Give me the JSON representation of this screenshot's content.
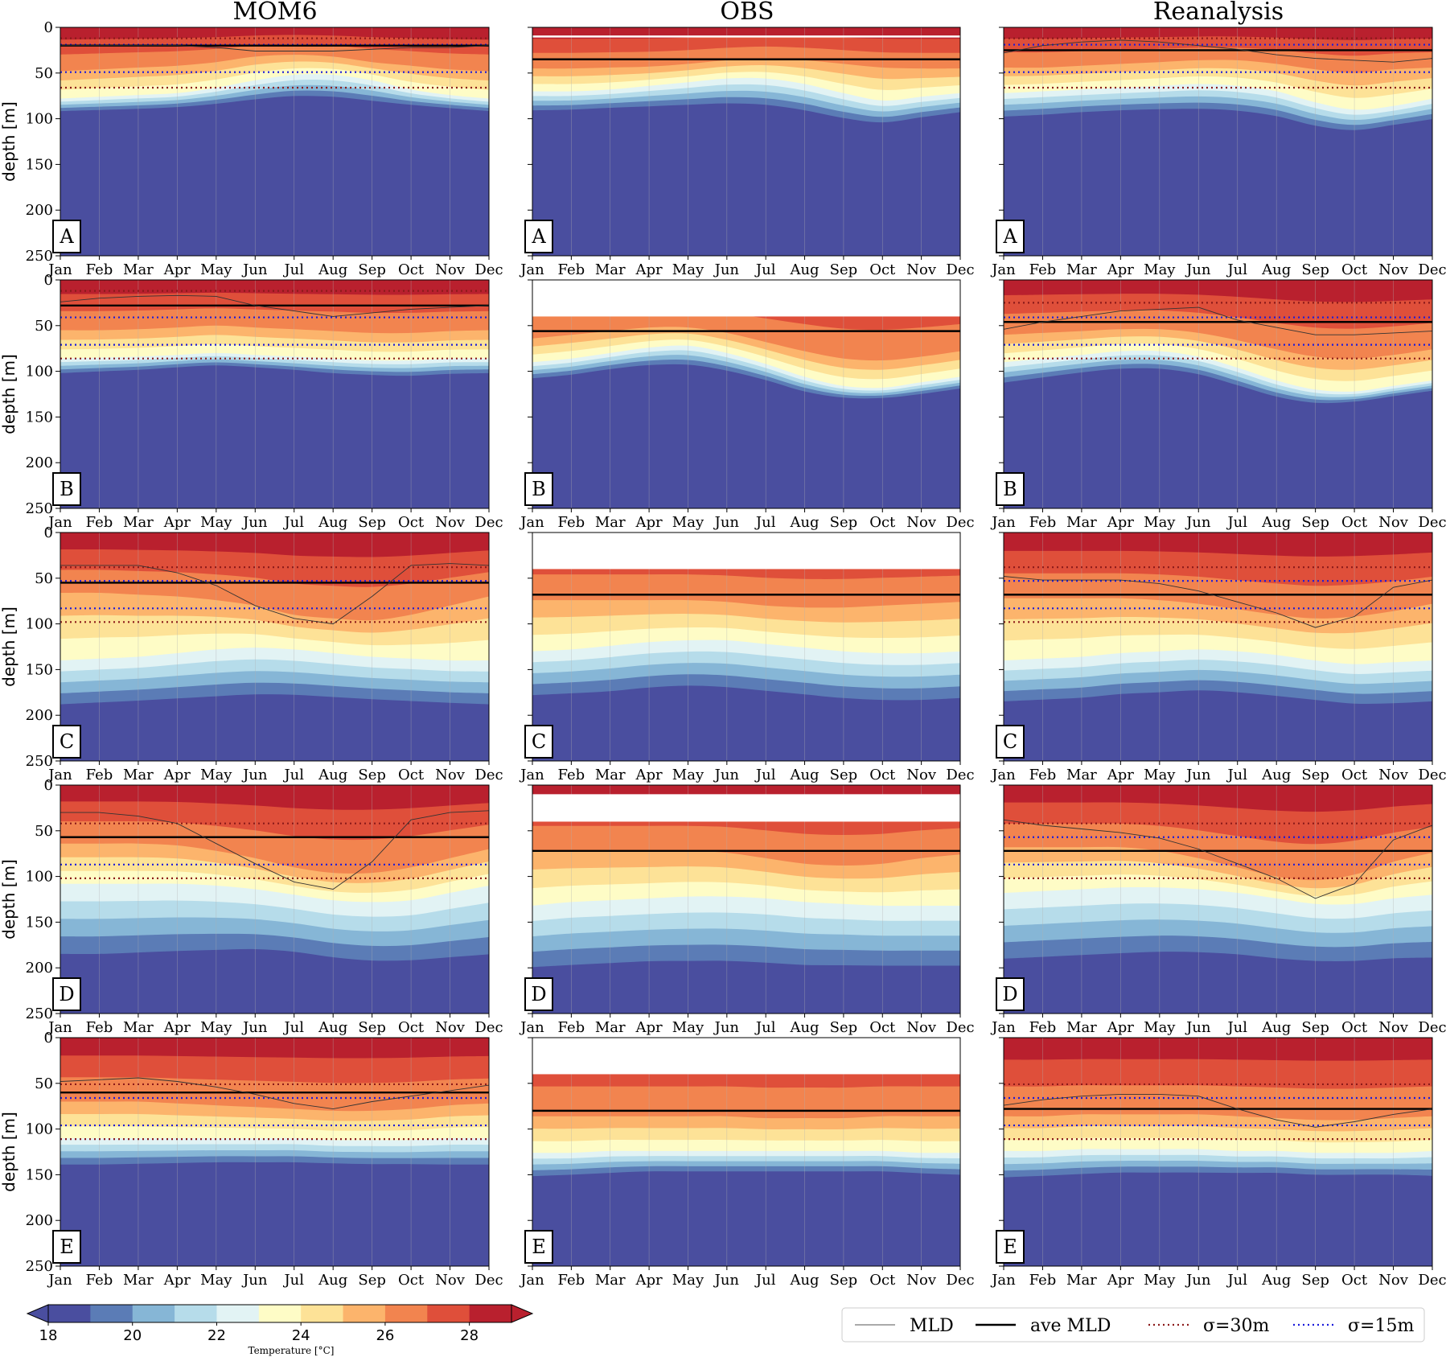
{
  "chart_data": {
    "type": "heatmap",
    "description_of_variable": "Temperature [°C]",
    "columns": [
      "MOM6",
      "OBS",
      "Reanalysis"
    ],
    "rows": [
      "A",
      "B",
      "C",
      "D",
      "E"
    ],
    "months": [
      "Jan",
      "Feb",
      "Mar",
      "Apr",
      "May",
      "Jun",
      "Jul",
      "Aug",
      "Sep",
      "Oct",
      "Nov",
      "Dec"
    ],
    "ylabel": "depth [m]",
    "yticks": [
      0,
      50,
      100,
      150,
      200,
      250
    ],
    "ylim": [
      250,
      0
    ],
    "colorbar": {
      "levels": [
        18,
        19,
        20,
        21,
        22,
        23,
        24,
        25,
        26,
        27,
        28,
        29
      ],
      "ticks": [
        18,
        20,
        22,
        24,
        26,
        28
      ],
      "label": "Temperature [°C]",
      "colors": [
        "#4a4e9f",
        "#5b7cb6",
        "#86b6d6",
        "#b6dcea",
        "#e2f3f4",
        "#fefcc6",
        "#fde297",
        "#fcb46c",
        "#f2844f",
        "#df4f3a",
        "#b9202e"
      ]
    },
    "legend": {
      "entries": [
        {
          "label": "MLD",
          "style": "thin-line",
          "color": "#555555"
        },
        {
          "label": "ave MLD",
          "style": "thick-line",
          "color": "#000000"
        },
        {
          "label": "σ=30m",
          "style": "dotted",
          "color": "#8b1a1a"
        },
        {
          "label": "σ=15m",
          "style": "dotted",
          "color": "#1a1adb"
        }
      ],
      "placement": "bottom-right"
    },
    "panels": [
      {
        "row": "A",
        "col": "MOM6",
        "isotherm26": [
          48,
          46,
          44,
          42,
          38,
          32,
          30,
          32,
          38,
          42,
          46,
          48
        ],
        "isotherm23": [
          78,
          76,
          74,
          72,
          66,
          58,
          52,
          52,
          58,
          68,
          74,
          78
        ],
        "bottom": [
          95,
          94,
          93,
          91,
          88,
          84,
          81,
          82,
          86,
          89,
          92,
          95
        ],
        "mld": [
          20,
          20,
          20,
          20,
          22,
          26,
          26,
          26,
          24,
          22,
          22,
          20
        ],
        "ave_mld": 20,
        "sigma30": [
          12,
          66
        ],
        "sigma15": [
          19,
          49
        ],
        "obs_gap": null
      },
      {
        "row": "A",
        "col": "OBS",
        "isotherm26": [
          45,
          45,
          44,
          43,
          40,
          36,
          34,
          36,
          40,
          44,
          45,
          45
        ],
        "isotherm23": [
          70,
          70,
          68,
          64,
          60,
          56,
          56,
          62,
          72,
          80,
          76,
          72
        ],
        "bottom": [
          96,
          95,
          93,
          92,
          91,
          90,
          92,
          98,
          106,
          110,
          104,
          98
        ],
        "mld": null,
        "ave_mld": 35,
        "sigma30": null,
        "sigma15": null,
        "obs_gap": null,
        "white_line": 10
      },
      {
        "row": "A",
        "col": "Reanalysis",
        "isotherm26": [
          44,
          44,
          42,
          40,
          38,
          36,
          36,
          40,
          46,
          50,
          46,
          44
        ],
        "isotherm23": [
          72,
          70,
          68,
          66,
          64,
          62,
          64,
          70,
          82,
          90,
          86,
          78
        ],
        "bottom": [
          104,
          102,
          99,
          97,
          96,
          96,
          98,
          104,
          114,
          118,
          112,
          106
        ],
        "mld": [
          28,
          20,
          16,
          14,
          16,
          20,
          24,
          30,
          34,
          36,
          38,
          34
        ],
        "ave_mld": 25,
        "sigma30": [
          12,
          66
        ],
        "sigma15": [
          19,
          49
        ],
        "obs_gap": null
      },
      {
        "row": "B",
        "col": "MOM6",
        "isotherm26": [
          55,
          55,
          54,
          52,
          50,
          52,
          54,
          56,
          58,
          58,
          56,
          55
        ],
        "isotherm23": [
          86,
          85,
          84,
          82,
          80,
          82,
          84,
          86,
          88,
          88,
          86,
          86
        ],
        "bottom": [
          106,
          104,
          102,
          99,
          97,
          99,
          102,
          106,
          108,
          109,
          107,
          106
        ],
        "mld": [
          24,
          20,
          18,
          17,
          18,
          28,
          34,
          40,
          36,
          32,
          30,
          28
        ],
        "ave_mld": 28,
        "sigma30": [
          12,
          86
        ],
        "sigma15": [
          41,
          71
        ],
        "obs_gap": null
      },
      {
        "row": "B",
        "col": "OBS",
        "isotherm26": [
          64,
          60,
          56,
          52,
          52,
          58,
          68,
          78,
          86,
          88,
          84,
          78
        ],
        "isotherm23": [
          90,
          86,
          80,
          74,
          72,
          80,
          92,
          106,
          116,
          118,
          112,
          106
        ],
        "bottom": [
          112,
          108,
          102,
          98,
          98,
          104,
          114,
          126,
          132,
          132,
          128,
          122
        ],
        "mld": null,
        "ave_mld": 56,
        "sigma30": null,
        "sigma15": null,
        "obs_gap": [
          0,
          40
        ]
      },
      {
        "row": "B",
        "col": "Reanalysis",
        "isotherm26": [
          60,
          58,
          56,
          54,
          54,
          58,
          66,
          76,
          84,
          86,
          82,
          76
        ],
        "isotherm23": [
          90,
          86,
          82,
          78,
          78,
          84,
          96,
          110,
          120,
          122,
          116,
          110
        ],
        "bottom": [
          118,
          112,
          106,
          102,
          102,
          108,
          120,
          132,
          138,
          136,
          130,
          124
        ],
        "mld": [
          54,
          46,
          40,
          34,
          32,
          30,
          44,
          52,
          60,
          60,
          58,
          56
        ],
        "ave_mld": 46,
        "sigma30": [
          25,
          86
        ],
        "sigma15": [
          41,
          71
        ],
        "obs_gap": null
      },
      {
        "row": "C",
        "col": "MOM6",
        "isotherm26": [
          66,
          66,
          68,
          70,
          74,
          80,
          90,
          94,
          96,
          90,
          80,
          70
        ],
        "isotherm23": [
          140,
          138,
          136,
          132,
          128,
          126,
          128,
          132,
          136,
          138,
          140,
          140
        ],
        "bottom": [
          200,
          198,
          196,
          194,
          192,
          190,
          190,
          192,
          194,
          196,
          198,
          200
        ],
        "mld": [
          36,
          36,
          36,
          44,
          58,
          80,
          94,
          100,
          70,
          36,
          34,
          36
        ],
        "ave_mld": 55,
        "sigma30": [
          38,
          98
        ],
        "sigma15": [
          53,
          83
        ],
        "obs_gap": null
      },
      {
        "row": "C",
        "col": "OBS",
        "isotherm26": [
          74,
          74,
          74,
          74,
          74,
          76,
          80,
          82,
          82,
          80,
          78,
          76
        ],
        "isotherm23": [
          130,
          128,
          124,
          120,
          118,
          118,
          122,
          126,
          130,
          132,
          132,
          130
        ],
        "bottom": [
          190,
          188,
          186,
          182,
          180,
          182,
          186,
          190,
          194,
          196,
          196,
          194
        ],
        "mld": null,
        "ave_mld": 68,
        "sigma30": null,
        "sigma15": null,
        "obs_gap": [
          0,
          40
        ]
      },
      {
        "row": "C",
        "col": "Reanalysis",
        "isotherm26": [
          72,
          72,
          72,
          72,
          74,
          78,
          84,
          90,
          94,
          92,
          86,
          78
        ],
        "isotherm23": [
          140,
          138,
          136,
          132,
          130,
          128,
          130,
          134,
          140,
          144,
          142,
          140
        ],
        "bottom": [
          196,
          194,
          192,
          188,
          186,
          184,
          186,
          190,
          194,
          198,
          198,
          196
        ],
        "mld": [
          48,
          52,
          52,
          52,
          56,
          64,
          76,
          88,
          104,
          92,
          60,
          52
        ],
        "ave_mld": 68,
        "sigma30": [
          38,
          98
        ],
        "sigma15": [
          53,
          83
        ],
        "obs_gap": null
      },
      {
        "row": "D",
        "col": "MOM6",
        "isotherm26": [
          64,
          64,
          64,
          66,
          72,
          80,
          90,
          96,
          96,
          90,
          80,
          70
        ],
        "isotherm23": [
          108,
          108,
          108,
          108,
          110,
          114,
          120,
          126,
          128,
          126,
          118,
          110
        ],
        "bottom": [
          204,
          204,
          202,
          200,
          198,
          196,
          198,
          204,
          208,
          208,
          206,
          204
        ],
        "mld": [
          30,
          30,
          34,
          42,
          64,
          86,
          106,
          114,
          84,
          38,
          30,
          28
        ],
        "ave_mld": 57,
        "sigma30": [
          42,
          102
        ],
        "sigma15": [
          57,
          87
        ],
        "obs_gap": null
      },
      {
        "row": "D",
        "col": "OBS",
        "isotherm26": [
          72,
          72,
          72,
          72,
          72,
          74,
          80,
          86,
          88,
          86,
          80,
          76
        ],
        "isotherm23": [
          132,
          128,
          126,
          124,
          122,
          122,
          124,
          128,
          130,
          132,
          132,
          132
        ],
        "bottom": [
          216,
          214,
          212,
          210,
          210,
          210,
          212,
          214,
          214,
          214,
          214,
          214
        ],
        "mld": null,
        "ave_mld": 72,
        "sigma30": null,
        "sigma15": null,
        "obs_gap": [
          10,
          40
        ]
      },
      {
        "row": "D",
        "col": "Reanalysis",
        "isotherm26": [
          68,
          68,
          68,
          68,
          72,
          80,
          90,
          100,
          104,
          98,
          84,
          74
        ],
        "isotherm23": [
          118,
          116,
          114,
          112,
          112,
          114,
          118,
          124,
          130,
          130,
          124,
          120
        ],
        "bottom": [
          208,
          206,
          204,
          202,
          200,
          200,
          202,
          206,
          208,
          208,
          206,
          206
        ],
        "mld": [
          38,
          44,
          48,
          52,
          58,
          70,
          86,
          102,
          124,
          108,
          60,
          44
        ],
        "ave_mld": 72,
        "sigma30": [
          42,
          102
        ],
        "sigma15": [
          57,
          87
        ],
        "obs_gap": null
      },
      {
        "row": "E",
        "col": "MOM6",
        "isotherm26": [
          70,
          70,
          70,
          72,
          74,
          76,
          78,
          80,
          80,
          78,
          74,
          72
        ],
        "isotherm23": [
          110,
          110,
          110,
          110,
          110,
          110,
          110,
          112,
          112,
          112,
          110,
          110
        ],
        "bottom": [
          146,
          146,
          145,
          144,
          143,
          143,
          143,
          144,
          145,
          145,
          146,
          146
        ],
        "mld": [
          48,
          46,
          44,
          48,
          54,
          62,
          72,
          78,
          70,
          64,
          58,
          52
        ],
        "ave_mld": 60,
        "sigma30": [
          51,
          111
        ],
        "sigma15": [
          66,
          96
        ],
        "obs_gap": null
      },
      {
        "row": "E",
        "col": "OBS",
        "isotherm26": [
          86,
          86,
          86,
          86,
          86,
          86,
          88,
          88,
          88,
          86,
          86,
          86
        ],
        "isotherm23": [
          126,
          126,
          124,
          124,
          124,
          124,
          124,
          124,
          124,
          124,
          126,
          126
        ],
        "bottom": [
          158,
          156,
          154,
          152,
          152,
          152,
          152,
          152,
          152,
          152,
          154,
          156
        ],
        "mld": null,
        "ave_mld": 80,
        "sigma30": null,
        "sigma15": null,
        "obs_gap": [
          0,
          40
        ]
      },
      {
        "row": "E",
        "col": "Reanalysis",
        "isotherm26": [
          86,
          86,
          84,
          84,
          84,
          84,
          86,
          88,
          90,
          90,
          88,
          86
        ],
        "isotherm23": [
          124,
          124,
          122,
          122,
          122,
          122,
          124,
          124,
          126,
          126,
          126,
          124
        ],
        "bottom": [
          160,
          158,
          156,
          154,
          154,
          154,
          154,
          154,
          156,
          156,
          156,
          158
        ],
        "mld": [
          74,
          68,
          64,
          62,
          62,
          64,
          78,
          90,
          98,
          92,
          84,
          78
        ],
        "ave_mld": 78,
        "sigma30": [
          51,
          111
        ],
        "sigma15": [
          66,
          96
        ],
        "obs_gap": null
      }
    ]
  }
}
